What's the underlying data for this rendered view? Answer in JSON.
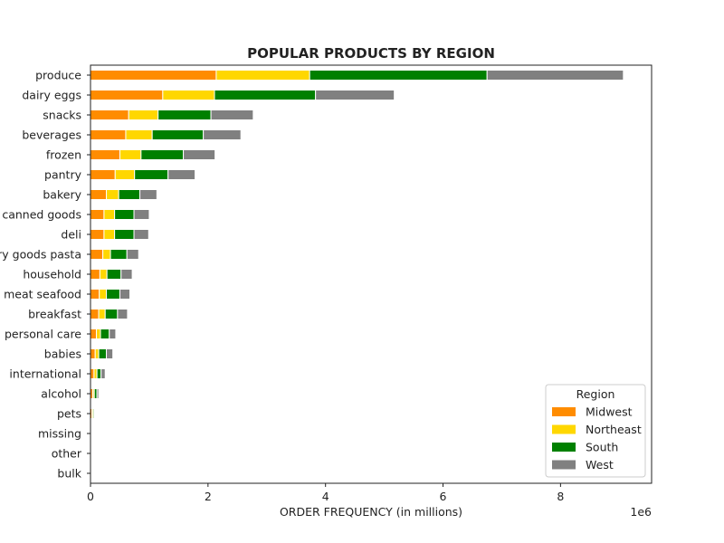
{
  "chart_data": {
    "type": "bar",
    "orientation": "horizontal",
    "stacked": true,
    "title": "POPULAR PRODUCTS BY REGION",
    "xlabel": "ORDER FREQUENCY (in millions)",
    "ylabel": "",
    "offset_text": "1e6",
    "xlim": [
      0,
      9550000
    ],
    "xticks": [
      0,
      2000000,
      4000000,
      6000000,
      8000000
    ],
    "xtick_labels": [
      "0",
      "2",
      "4",
      "6",
      "8"
    ],
    "grid": false,
    "legend": {
      "title": "Region",
      "placement": "lower-right"
    },
    "categories": [
      "produce",
      "dairy eggs",
      "snacks",
      "beverages",
      "frozen",
      "pantry",
      "bakery",
      "canned goods",
      "deli",
      "dry goods pasta",
      "household",
      "meat seafood",
      "breakfast",
      "personal care",
      "babies",
      "international",
      "alcohol",
      "pets",
      "missing",
      "other",
      "bulk"
    ],
    "series": [
      {
        "name": "Midwest",
        "color": "#ff8c00",
        "values": [
          2140000,
          1230000,
          650000,
          600000,
          500000,
          420000,
          270000,
          230000,
          230000,
          210000,
          160000,
          150000,
          140000,
          100000,
          80000,
          60000,
          40000,
          25000,
          5000,
          4000,
          3000
        ]
      },
      {
        "name": "Northeast",
        "color": "#ffd700",
        "values": [
          1590000,
          880000,
          500000,
          450000,
          360000,
          330000,
          210000,
          180000,
          180000,
          130000,
          120000,
          120000,
          110000,
          70000,
          60000,
          50000,
          25000,
          20000,
          3000,
          3000,
          2000
        ]
      },
      {
        "name": "South",
        "color": "#008000",
        "values": [
          3020000,
          1720000,
          900000,
          870000,
          720000,
          570000,
          360000,
          330000,
          330000,
          280000,
          240000,
          230000,
          210000,
          150000,
          130000,
          70000,
          45000,
          20000,
          5000,
          5000,
          3000
        ]
      },
      {
        "name": "West",
        "color": "#808080",
        "values": [
          2320000,
          1340000,
          720000,
          640000,
          540000,
          460000,
          290000,
          260000,
          250000,
          200000,
          190000,
          170000,
          170000,
          110000,
          110000,
          70000,
          30000,
          15000,
          4000,
          3000,
          2000
        ]
      }
    ]
  }
}
